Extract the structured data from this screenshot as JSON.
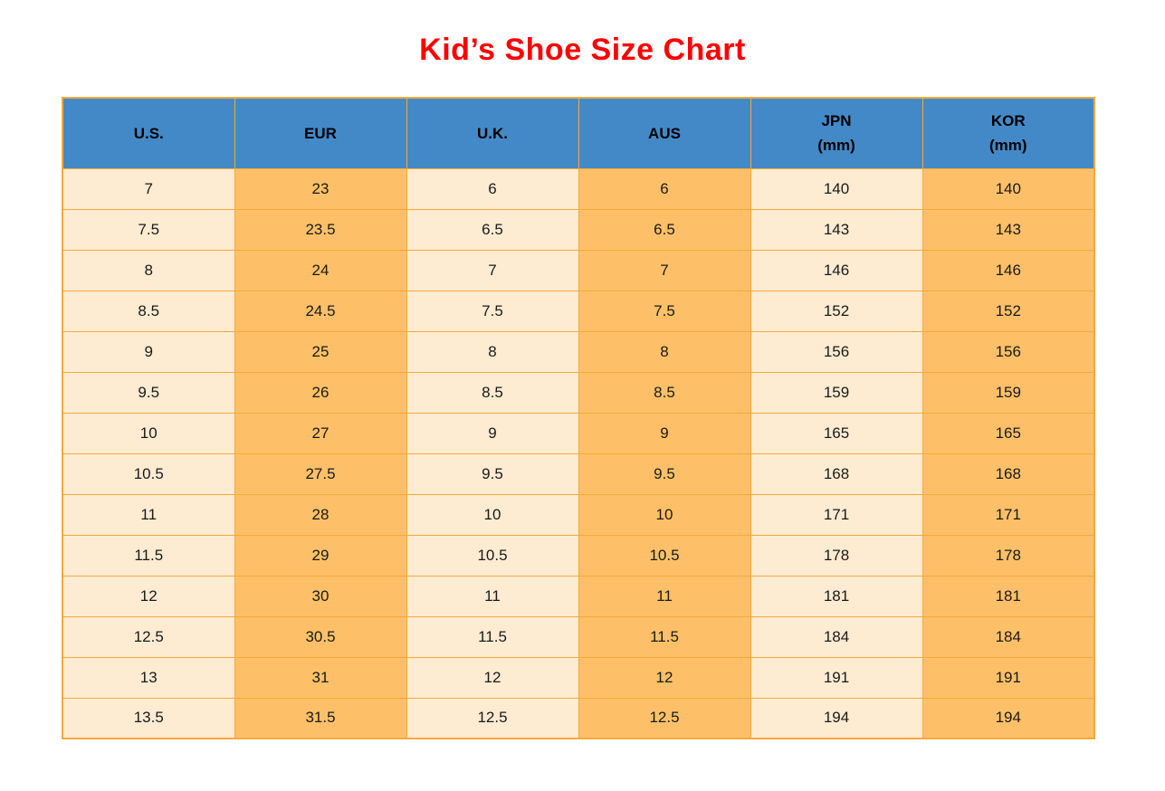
{
  "title": "Kid’s Shoe Size Chart",
  "colors": {
    "title_color": "#FF0000",
    "header_bg": "#4389C8",
    "border_color": "#F5A93B",
    "cell_light": "#FDEBD2",
    "cell_orange": "#FDC068",
    "cell_text": "#1A1A1A"
  },
  "chart_data": {
    "type": "table",
    "title": "Kid’s Shoe Size Chart",
    "columns": [
      {
        "id": "us",
        "label": "U.S.",
        "sub": "",
        "shade": "light"
      },
      {
        "id": "eur",
        "label": "EUR",
        "sub": "",
        "shade": "orange"
      },
      {
        "id": "uk",
        "label": "U.K.",
        "sub": "",
        "shade": "light"
      },
      {
        "id": "aus",
        "label": "AUS",
        "sub": "",
        "shade": "orange"
      },
      {
        "id": "jpn-mm",
        "label": "JPN",
        "sub": "(mm)",
        "shade": "light"
      },
      {
        "id": "kor-mm",
        "label": "KOR",
        "sub": "(mm)",
        "shade": "orange"
      }
    ],
    "rows": [
      [
        "7",
        "23",
        "6",
        "6",
        "140",
        "140"
      ],
      [
        "7.5",
        "23.5",
        "6.5",
        "6.5",
        "143",
        "143"
      ],
      [
        "8",
        "24",
        "7",
        "7",
        "146",
        "146"
      ],
      [
        "8.5",
        "24.5",
        "7.5",
        "7.5",
        "152",
        "152"
      ],
      [
        "9",
        "25",
        "8",
        "8",
        "156",
        "156"
      ],
      [
        "9.5",
        "26",
        "8.5",
        "8.5",
        "159",
        "159"
      ],
      [
        "10",
        "27",
        "9",
        "9",
        "165",
        "165"
      ],
      [
        "10.5",
        "27.5",
        "9.5",
        "9.5",
        "168",
        "168"
      ],
      [
        "11",
        "28",
        "10",
        "10",
        "171",
        "171"
      ],
      [
        "11.5",
        "29",
        "10.5",
        "10.5",
        "178",
        "178"
      ],
      [
        "12",
        "30",
        "11",
        "11",
        "181",
        "181"
      ],
      [
        "12.5",
        "30.5",
        "11.5",
        "11.5",
        "184",
        "184"
      ],
      [
        "13",
        "31",
        "12",
        "12",
        "191",
        "191"
      ],
      [
        "13.5",
        "31.5",
        "12.5",
        "12.5",
        "194",
        "194"
      ]
    ]
  }
}
